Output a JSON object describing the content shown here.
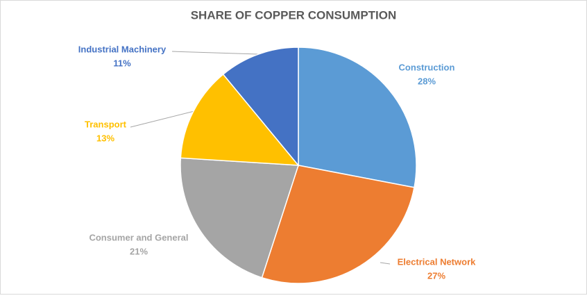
{
  "chart_data": {
    "type": "pie",
    "title": "SHARE OF COPPER CONSUMPTION",
    "categories": [
      "Construction",
      "Electrical Network",
      "Consumer and General",
      "Transport",
      "Industrial Machinery"
    ],
    "values": [
      28,
      27,
      21,
      13,
      11
    ],
    "value_labels": [
      "28%",
      "27%",
      "21%",
      "13%",
      "11%"
    ],
    "colors": [
      "#5b9bd5",
      "#ed7d31",
      "#a5a5a5",
      "#ffc000",
      "#4472c4"
    ]
  }
}
